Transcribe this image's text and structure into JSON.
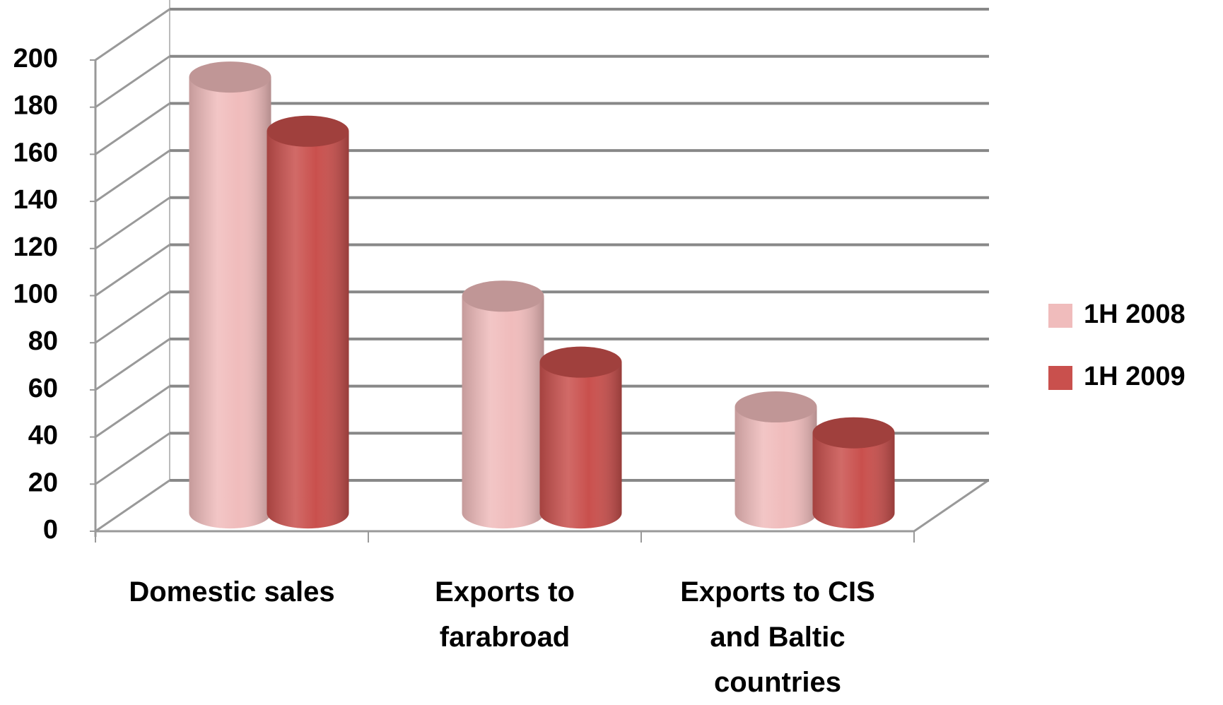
{
  "chart_data": {
    "type": "bar3d",
    "categories": [
      "Domestic sales",
      "Exports to farabroad",
      "Exports to CIS and Baltic countries"
    ],
    "series": [
      {
        "name": "1H 2008",
        "color": "#f0bcbc",
        "values": [
          185,
          92,
          45
        ]
      },
      {
        "name": "1H 2009",
        "color": "#c9504d",
        "values": [
          162,
          64,
          34
        ]
      }
    ],
    "ylim": [
      0,
      200
    ],
    "yticks": [
      0,
      20,
      40,
      60,
      80,
      100,
      120,
      140,
      160,
      180,
      200
    ],
    "grid": true,
    "legend": "right"
  }
}
